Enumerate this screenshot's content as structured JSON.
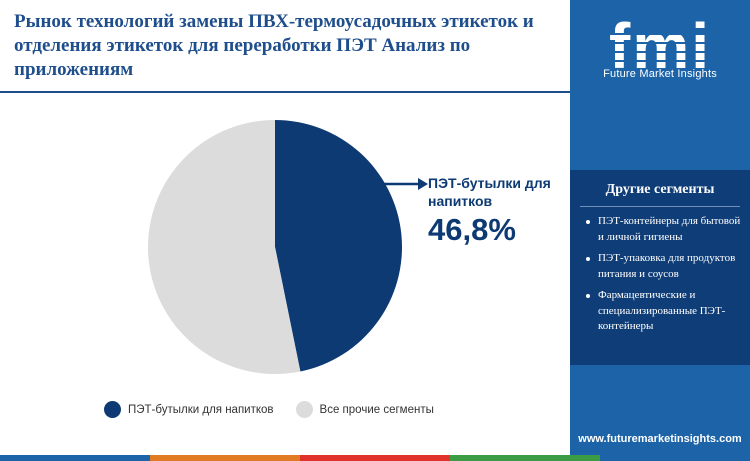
{
  "title": "Рынок технологий замены ПВХ-термоусадочных этикеток и отделения этикеток для переработки ПЭТ Анализ по приложениям",
  "chart_data": {
    "type": "pie",
    "title": "Рынок технологий замены ПВХ-термоусадочных этикеток и отделения этикеток для переработки ПЭТ Анализ по приложениям",
    "slices": [
      {
        "label": "ПЭТ-бутылки для напитков",
        "value": 46.8,
        "color": "#0d3a73"
      },
      {
        "label": "Все прочие сегменты",
        "value": 53.2,
        "color": "#dcdcdc"
      }
    ],
    "legend_position": "bottom",
    "annotations": [
      {
        "label": "ПЭТ-бутылки для напитков",
        "value_text": "46,8%"
      }
    ]
  },
  "callout": {
    "label": "ПЭТ-бутылки для напитков",
    "value": "46,8%"
  },
  "legend": [
    {
      "label": "ПЭТ-бутылки для напитков",
      "color": "#0d3a73"
    },
    {
      "label": "Все прочие сегменты",
      "color": "#dcdcdc"
    }
  ],
  "sidebar": {
    "logo_text": "fmi",
    "logo_subtitle": "Future Market Insights",
    "heading": "Другие сегменты",
    "items": [
      "ПЭТ-контейнеры для бытовой и личной гигиены",
      "ПЭТ-упаковка для продуктов питания и соусов",
      "Фармацевтические и специализированные ПЭТ-контейнеры"
    ],
    "url": "www.futuremarketinsights.com"
  },
  "colors": {
    "accent": "#1f4e8c",
    "sidebar_bg": "#1c63a8",
    "panel_bg": "#0f3d78",
    "bottom_bar": [
      "#1c63a8",
      "#e07b24",
      "#e0312b",
      "#3b9c45",
      "#1c63a8"
    ]
  }
}
